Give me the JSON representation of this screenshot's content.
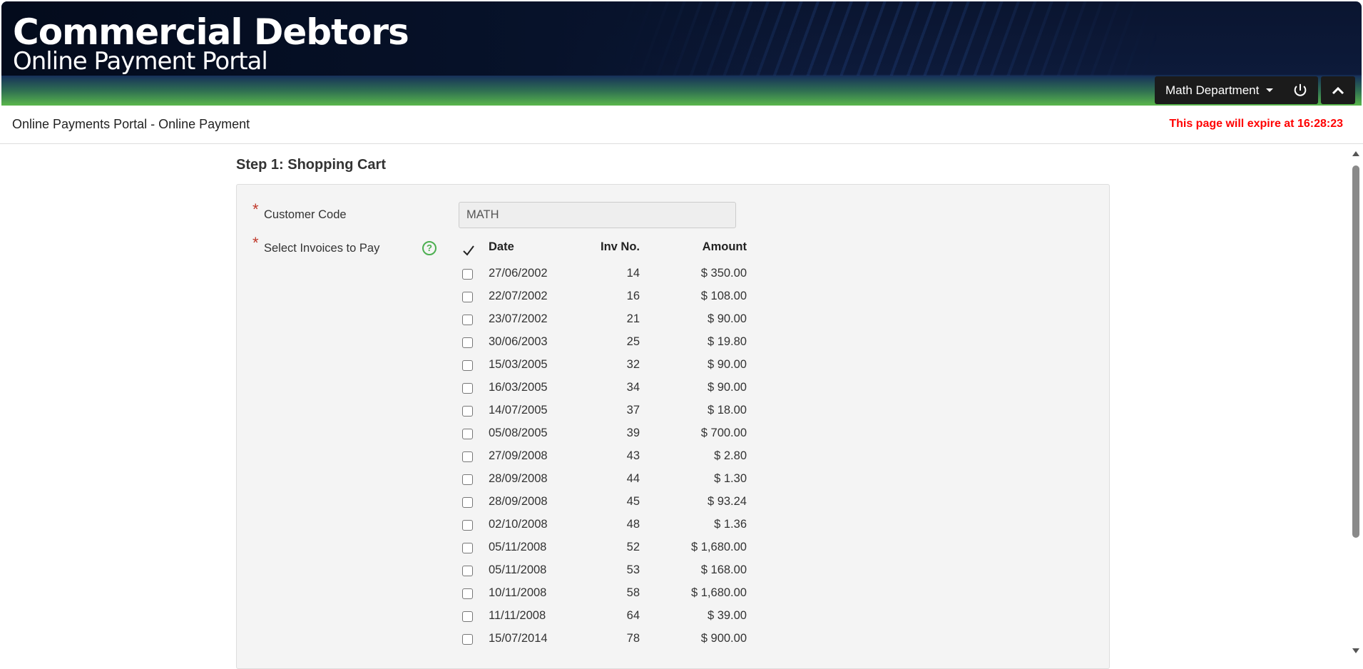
{
  "header": {
    "title": "Commercial Debtors",
    "subtitle": "Online Payment Portal",
    "user_menu": "Math Department"
  },
  "breadcrumb": "Online Payments Portal - Online Payment",
  "expiry": "This page will expire at 16:28:23",
  "step_title": "Step 1: Shopping Cart",
  "form": {
    "customer_code_label": "Customer Code",
    "customer_code_value": "MATH",
    "invoices_label": "Select Invoices to Pay",
    "required_mark": "*",
    "help": "?",
    "columns": [
      "Date",
      "Inv No.",
      "Amount"
    ],
    "invoices": [
      {
        "date": "27/06/2002",
        "inv": "14",
        "amount": "$ 350.00",
        "checked": false
      },
      {
        "date": "22/07/2002",
        "inv": "16",
        "amount": "$ 108.00",
        "checked": false
      },
      {
        "date": "23/07/2002",
        "inv": "21",
        "amount": "$ 90.00",
        "checked": false
      },
      {
        "date": "30/06/2003",
        "inv": "25",
        "amount": "$ 19.80",
        "checked": false
      },
      {
        "date": "15/03/2005",
        "inv": "32",
        "amount": "$ 90.00",
        "checked": false
      },
      {
        "date": "16/03/2005",
        "inv": "34",
        "amount": "$ 90.00",
        "checked": false
      },
      {
        "date": "14/07/2005",
        "inv": "37",
        "amount": "$ 18.00",
        "checked": false
      },
      {
        "date": "05/08/2005",
        "inv": "39",
        "amount": "$ 700.00",
        "checked": false
      },
      {
        "date": "27/09/2008",
        "inv": "43",
        "amount": "$ 2.80",
        "checked": false
      },
      {
        "date": "28/09/2008",
        "inv": "44",
        "amount": "$ 1.30",
        "checked": false
      },
      {
        "date": "28/09/2008",
        "inv": "45",
        "amount": "$ 93.24",
        "checked": false
      },
      {
        "date": "02/10/2008",
        "inv": "48",
        "amount": "$ 1.36",
        "checked": false
      },
      {
        "date": "05/11/2008",
        "inv": "52",
        "amount": "$ 1,680.00",
        "checked": false
      },
      {
        "date": "05/11/2008",
        "inv": "53",
        "amount": "$ 168.00",
        "checked": false
      },
      {
        "date": "10/11/2008",
        "inv": "58",
        "amount": "$ 1,680.00",
        "checked": false
      },
      {
        "date": "11/11/2008",
        "inv": "64",
        "amount": "$ 39.00",
        "checked": false
      },
      {
        "date": "15/07/2014",
        "inv": "78",
        "amount": "$ 900.00",
        "checked": false
      }
    ]
  },
  "colors": {
    "expiry": "#ff0000",
    "required": "#c0392b",
    "help": "#4caf50",
    "header_green": "#5ab74c",
    "header_navy": "#0d1a3a"
  }
}
